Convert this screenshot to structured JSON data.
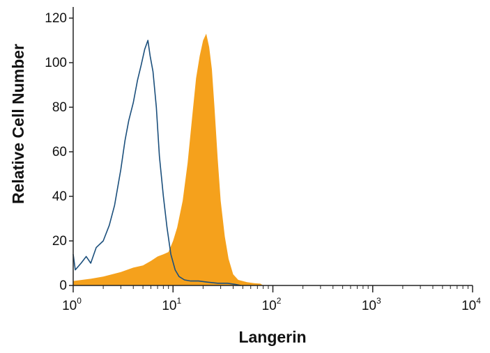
{
  "chart_data": {
    "type": "area",
    "title": "",
    "xlabel": "Langerin",
    "ylabel": "Relative Cell Number",
    "x_scale": "log",
    "xlim": [
      1,
      10000
    ],
    "ylim": [
      0,
      125
    ],
    "y_ticks": [
      0,
      20,
      40,
      60,
      80,
      100,
      120
    ],
    "x_ticks": [
      {
        "value": 1,
        "base": "10",
        "exp": "0"
      },
      {
        "value": 10,
        "base": "10",
        "exp": "1"
      },
      {
        "value": 100,
        "base": "10",
        "exp": "2"
      },
      {
        "value": 1000,
        "base": "10",
        "exp": "3"
      },
      {
        "value": 10000,
        "base": "10",
        "exp": "4"
      }
    ],
    "grid": false,
    "series": [
      {
        "style": "filled",
        "color": "#f5a11c",
        "x": [
          1.0,
          1.5,
          2.0,
          3.0,
          4.0,
          5.0,
          6.0,
          7.0,
          8.0,
          9.0,
          10.0,
          11.0,
          12.5,
          14.0,
          15.5,
          17.0,
          18.5,
          20.0,
          21.5,
          23.0,
          24.5,
          26.0,
          28.0,
          30.0,
          33.0,
          36.0,
          40.0,
          45.0,
          55.0,
          65.0,
          75.0,
          80.0
        ],
        "values": [
          2,
          3,
          4,
          6,
          8,
          9,
          11,
          13,
          14,
          15,
          20,
          26,
          38,
          55,
          75,
          93,
          103,
          110,
          113,
          107,
          97,
          80,
          57,
          38,
          22,
          12,
          5,
          2.5,
          1.5,
          1,
          0.8,
          0
        ]
      },
      {
        "style": "outline",
        "color": "#1b4f7c",
        "x": [
          1.0,
          1.05,
          1.2,
          1.35,
          1.5,
          1.7,
          2.0,
          2.3,
          2.6,
          3.0,
          3.3,
          3.6,
          4.0,
          4.4,
          4.8,
          5.2,
          5.6,
          5.9,
          6.3,
          6.8,
          7.3,
          8.0,
          8.7,
          9.5,
          10.5,
          11.5,
          13.0,
          15.0,
          18.0,
          22.0,
          28.0,
          35.0,
          42.0,
          48.0
        ],
        "values": [
          14,
          7,
          10,
          13,
          10,
          17,
          20,
          27,
          36,
          52,
          65,
          74,
          82,
          92,
          99,
          106,
          110,
          103,
          96,
          80,
          58,
          40,
          26,
          14,
          7,
          4,
          2.5,
          2,
          2,
          1.5,
          1,
          1,
          0.5,
          0
        ]
      }
    ]
  }
}
